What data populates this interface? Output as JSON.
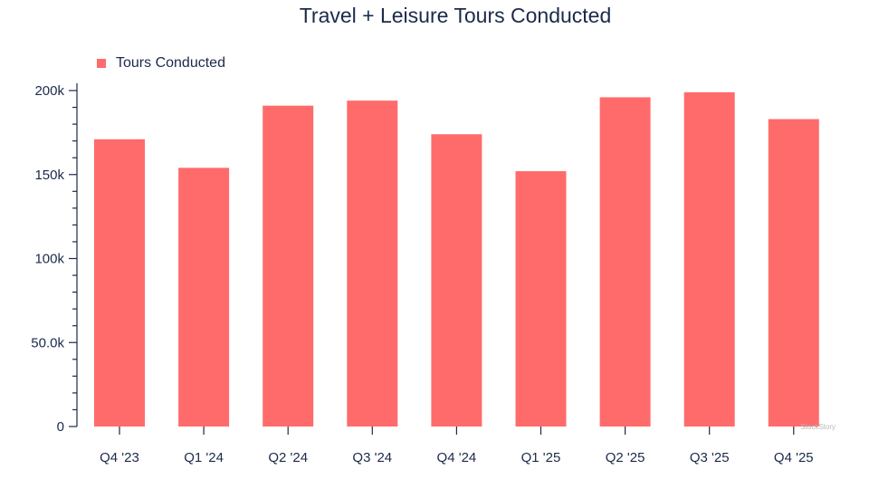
{
  "chart_data": {
    "type": "bar",
    "title": "Travel + Leisure Tours Conducted",
    "xlabel": "",
    "ylabel": "",
    "categories": [
      "Q4 '23",
      "Q1 '24",
      "Q2 '24",
      "Q3 '24",
      "Q4 '24",
      "Q1 '25",
      "Q2 '25",
      "Q3 '25",
      "Q4 '25"
    ],
    "series": [
      {
        "name": "Tours Conducted",
        "color": "#ff6b6b",
        "values": [
          171000,
          154000,
          191000,
          194000,
          174000,
          152000,
          196000,
          199000,
          183000
        ]
      }
    ],
    "ylim": [
      0,
      200000
    ],
    "yticks": [
      {
        "value": 0,
        "label": "0"
      },
      {
        "value": 50000,
        "label": "50.0k"
      },
      {
        "value": 100000,
        "label": "100k"
      },
      {
        "value": 150000,
        "label": "150k"
      },
      {
        "value": 200000,
        "label": "200k"
      }
    ],
    "grid": false,
    "legend_position": "top-left"
  },
  "watermark": "StockStory"
}
